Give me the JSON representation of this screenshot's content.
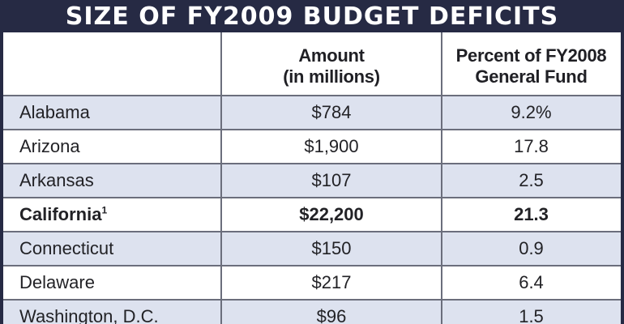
{
  "title": "SIZE OF FY2009 BUDGET DEFICITS",
  "table": {
    "headers": {
      "state": "",
      "amount_line1": "Amount",
      "amount_line2": "(in millions)",
      "percent_line1": "Percent of FY2008",
      "percent_line2": "General Fund"
    },
    "rows": [
      {
        "state": "Alabama",
        "footnote": "",
        "amount": "$784",
        "percent": "9.2%",
        "bold": false
      },
      {
        "state": "Arizona",
        "footnote": "",
        "amount": "$1,900",
        "percent": "17.8",
        "bold": false
      },
      {
        "state": "Arkansas",
        "footnote": "",
        "amount": "$107",
        "percent": "2.5",
        "bold": false
      },
      {
        "state": "California",
        "footnote": "1",
        "amount": "$22,200",
        "percent": "21.3",
        "bold": true
      },
      {
        "state": "Connecticut",
        "footnote": "",
        "amount": "$150",
        "percent": "0.9",
        "bold": false
      },
      {
        "state": "Delaware",
        "footnote": "",
        "amount": "$217",
        "percent": "6.4",
        "bold": false
      },
      {
        "state": "Washington, D.C.",
        "footnote": "",
        "amount": "$96",
        "percent": "1.5",
        "bold": false
      }
    ]
  },
  "colors": {
    "title_bar": "#262a44",
    "shaded_row": "#dde2ef",
    "rule": "#6b6e7c"
  }
}
